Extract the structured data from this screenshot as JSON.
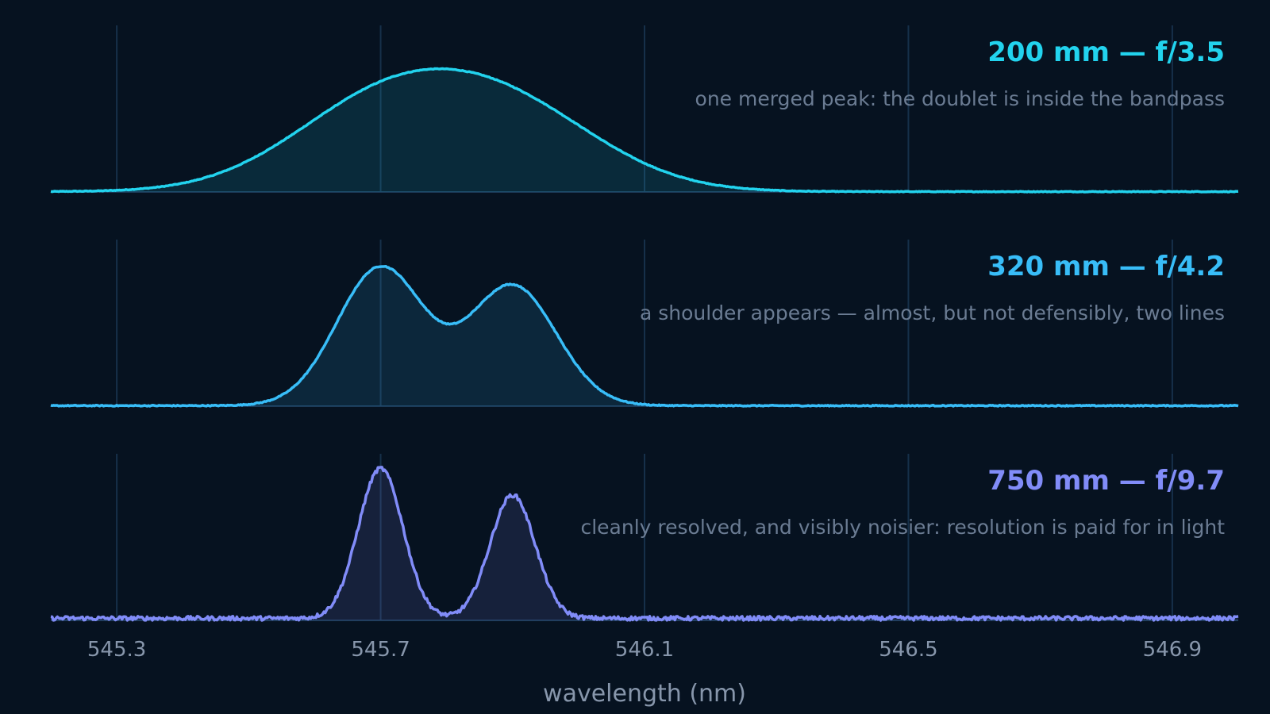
{
  "chart_data": {
    "type": "line",
    "xlabel": "wavelength (nm)",
    "xlim": [
      545.2,
      547.0
    ],
    "xticks": [
      545.3,
      545.7,
      546.1,
      546.5,
      546.9
    ],
    "xtick_labels": [
      "545.3",
      "545.7",
      "546.1",
      "546.5",
      "546.9"
    ],
    "grid": true,
    "panels": [
      {
        "title": "200 mm — f/3.5",
        "note": "one merged peak: the doublet is inside the bandpass",
        "color": "#22d3ee",
        "noise": 0.004,
        "components": [
          {
            "center": 545.7,
            "sigma": 0.14,
            "amp": 0.5
          },
          {
            "center": 545.9,
            "sigma": 0.14,
            "amp": 0.45
          }
        ]
      },
      {
        "title": "320 mm — f/4.2",
        "note": "a shoulder appears — almost, but not defensibly, two lines",
        "color": "#38bdf8",
        "noise": 0.006,
        "components": [
          {
            "center": 545.7,
            "sigma": 0.066,
            "amp": 0.83
          },
          {
            "center": 545.9,
            "sigma": 0.066,
            "amp": 0.72
          }
        ]
      },
      {
        "title": "750 mm — f/9.7",
        "note": "cleanly resolved, and visibly noisier: resolution is paid for in light",
        "color": "#818cf8",
        "noise": 0.025,
        "components": [
          {
            "center": 545.7,
            "sigma": 0.034,
            "amp": 0.9
          },
          {
            "center": 545.9,
            "sigma": 0.034,
            "amp": 0.74
          }
        ]
      }
    ]
  }
}
